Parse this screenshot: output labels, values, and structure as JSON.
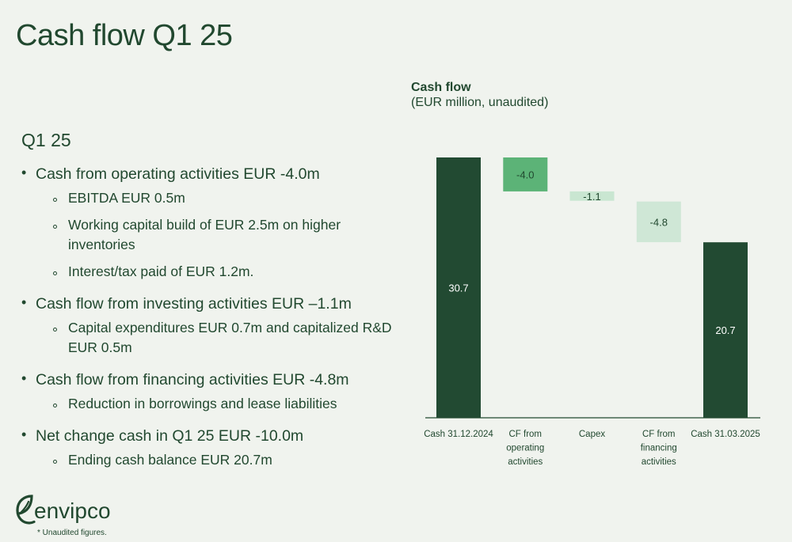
{
  "page": {
    "title": "Cash flow Q1 25"
  },
  "summary": {
    "heading": "Q1 25",
    "bullets": [
      {
        "text": "Cash from operating activities EUR -4.0m",
        "sub": [
          "EBITDA EUR 0.5m",
          "Working capital build of EUR 2.5m on higher inventories",
          "Interest/tax paid of EUR 1.2m."
        ]
      },
      {
        "text": "Cash flow from investing activities EUR –1.1m",
        "sub": [
          "Capital expenditures EUR 0.7m and capitalized R&D EUR 0.5m"
        ]
      },
      {
        "text": "Cash flow from financing activities EUR -4.8m",
        "sub": [
          "Reduction in borrowings and lease liabilities"
        ]
      },
      {
        "text": "Net change cash in Q1 25 EUR -10.0m",
        "sub": [
          "Ending cash balance EUR 20.7m"
        ]
      }
    ]
  },
  "chart_data": {
    "type": "bar",
    "subtype": "waterfall",
    "title": "Cash flow",
    "subtitle": "(EUR million, unaudited)",
    "categories": [
      [
        "Cash 31.12.2024"
      ],
      [
        "CF from",
        "operating",
        "activities"
      ],
      [
        "Capex"
      ],
      [
        "CF from",
        "financing",
        "activities"
      ],
      [
        "Cash 31.03.2025"
      ]
    ],
    "bars": [
      {
        "kind": "total",
        "start": 0,
        "end": 30.7,
        "label": "30.7",
        "color": "#224a32",
        "label_color": "#ffffff"
      },
      {
        "kind": "delta",
        "start": 30.7,
        "end": 26.7,
        "label": "-4.0",
        "color": "#5cb377",
        "label_color": "#21482f"
      },
      {
        "kind": "delta",
        "start": 26.7,
        "end": 25.6,
        "label": "-1.1",
        "color": "#c9e6d1",
        "label_color": "#21482f"
      },
      {
        "kind": "delta",
        "start": 25.5,
        "end": 20.7,
        "label": "-4.8",
        "color": "#cfe7d6",
        "label_color": "#21482f"
      },
      {
        "kind": "total",
        "start": 0,
        "end": 20.7,
        "label": "20.7",
        "color": "#224a32",
        "label_color": "#ffffff"
      }
    ],
    "ylim": [
      0,
      32
    ],
    "grid": false,
    "legend": "none"
  },
  "brand": {
    "name": "envipco",
    "color": "#21482f"
  },
  "footnote": "* Unaudited figures."
}
